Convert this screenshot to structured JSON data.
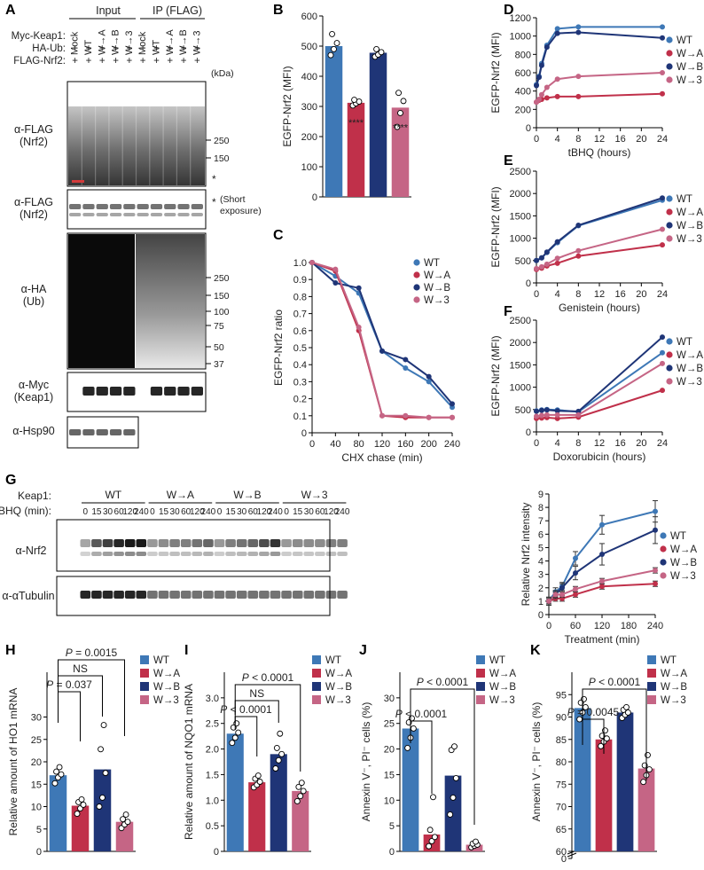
{
  "figure_title": "",
  "colors": {
    "WT": "#3e78b6",
    "W→A": "#c0304a",
    "W→B": "#1f3577",
    "W→3": "#c56585"
  },
  "panel_labels": [
    "A",
    "B",
    "C",
    "D",
    "E",
    "F",
    "G",
    "H",
    "I",
    "J",
    "K"
  ],
  "panel_A": {
    "group_labels": [
      "Input",
      "IP (FLAG)"
    ],
    "row_labels": [
      "Myc-Keap1:",
      "HA-Ub:",
      "FLAG-Nrf2:"
    ],
    "lane_labels": [
      "Mock",
      "WT",
      "W→A",
      "W→B",
      "W→3",
      "Mock",
      "WT",
      "W→A",
      "W→B",
      "W→3"
    ],
    "plus_row": [
      "+",
      "+",
      "+",
      "+",
      "+",
      "+",
      "+",
      "+",
      "+",
      "+"
    ],
    "unit": "(kDa)",
    "blots": [
      {
        "label": "α-FLAG",
        "sublabel": "(Nrf2)",
        "markers": [
          "250",
          "150"
        ]
      },
      {
        "label": "α-FLAG",
        "sublabel": "(Nrf2)",
        "note": "(Short exposure)",
        "markers": []
      },
      {
        "label": "α-HA",
        "sublabel": "(Ub)",
        "markers": [
          "250",
          "150",
          "100",
          "75",
          "50",
          "37"
        ]
      },
      {
        "label": "α-Myc",
        "sublabel": "(Keap1)",
        "markers": []
      },
      {
        "label": "α-Hsp90",
        "sublabel": "",
        "markers": []
      }
    ],
    "asterisk": "*"
  },
  "panel_G": {
    "row_label": "Keap1:",
    "time_label": "tBHQ (min):",
    "groups": [
      "WT",
      "W→A",
      "W→B",
      "W→3"
    ],
    "times": [
      "0",
      "15",
      "30",
      "60",
      "120",
      "240"
    ],
    "blots": [
      "α-Nrf2",
      "α-αTubulin"
    ]
  },
  "chart_data": [
    {
      "id": "B",
      "type": "bar",
      "categories": [
        "WT",
        "W→A",
        "W→B",
        "W→3"
      ],
      "values": [
        500,
        312,
        478,
        296
      ],
      "points": [
        [
          470,
          490,
          510,
          540
        ],
        [
          303,
          310,
          316,
          322
        ],
        [
          465,
          472,
          480,
          490
        ],
        [
          232,
          278,
          318,
          345
        ]
      ],
      "annotations": [
        "",
        "****",
        "",
        "****"
      ],
      "ylabel": "EGFP-Nrf2 (MFI)",
      "ylim": [
        0,
        600
      ],
      "yticks": [
        "0",
        "100",
        "200",
        "300",
        "400",
        "500",
        "600"
      ]
    },
    {
      "id": "C",
      "type": "line",
      "x": [
        0,
        40,
        80,
        120,
        160,
        200,
        240
      ],
      "series": [
        {
          "name": "WT",
          "values": [
            1.0,
            0.92,
            0.82,
            0.48,
            0.38,
            0.3,
            0.15
          ]
        },
        {
          "name": "W→A",
          "values": [
            1.0,
            0.95,
            0.6,
            0.1,
            0.09,
            0.09,
            0.09
          ]
        },
        {
          "name": "W→B",
          "values": [
            1.0,
            0.88,
            0.85,
            0.48,
            0.43,
            0.33,
            0.17
          ]
        },
        {
          "name": "W→3",
          "values": [
            1.0,
            0.96,
            0.62,
            0.1,
            0.1,
            0.09,
            0.09
          ]
        }
      ],
      "xlabel": "CHX chase (min)",
      "ylabel": "EGFP-Nrf2 ratio",
      "xlim": [
        0,
        240
      ],
      "ylim": [
        0,
        1
      ],
      "xticks": [
        "0",
        "40",
        "80",
        "120",
        "160",
        "200",
        "240"
      ],
      "yticks": [
        "0",
        "0.1",
        "0.2",
        "0.3",
        "0.4",
        "0.5",
        "0.6",
        "0.7",
        "0.8",
        "0.9",
        "1.0"
      ],
      "legend": [
        "WT",
        "W→A",
        "W→B",
        "W→3"
      ]
    },
    {
      "id": "D",
      "type": "line",
      "x": [
        0,
        0.5,
        1,
        2,
        4,
        8,
        24
      ],
      "series": [
        {
          "name": "WT",
          "values": [
            470,
            560,
            700,
            900,
            1080,
            1100,
            1100
          ]
        },
        {
          "name": "W→A",
          "values": [
            280,
            300,
            310,
            325,
            340,
            340,
            370
          ]
        },
        {
          "name": "W→B",
          "values": [
            460,
            550,
            680,
            880,
            1030,
            1040,
            980
          ]
        },
        {
          "name": "W→3",
          "values": [
            280,
            310,
            360,
            440,
            530,
            560,
            600
          ]
        }
      ],
      "xlabel": "tBHQ (hours)",
      "ylabel": "EGFP-Nrf2 (MFI)",
      "xlim": [
        0,
        24
      ],
      "ylim": [
        0,
        1200
      ],
      "xticks": [
        "0",
        "4",
        "8",
        "12",
        "16",
        "20",
        "24"
      ],
      "yticks": [
        "0",
        "200",
        "400",
        "600",
        "800",
        "1000",
        "1200"
      ],
      "legend": [
        "WT",
        "W→A",
        "W→B",
        "W→3"
      ]
    },
    {
      "id": "E",
      "type": "line",
      "x": [
        0,
        1,
        2,
        4,
        8,
        24
      ],
      "series": [
        {
          "name": "WT",
          "values": [
            500,
            560,
            680,
            900,
            1280,
            1850
          ]
        },
        {
          "name": "W→A",
          "values": [
            300,
            330,
            380,
            440,
            600,
            850
          ]
        },
        {
          "name": "W→B",
          "values": [
            500,
            560,
            690,
            920,
            1290,
            1900
          ]
        },
        {
          "name": "W→3",
          "values": [
            320,
            360,
            420,
            550,
            720,
            1200
          ]
        }
      ],
      "xlabel": "Genistein (hours)",
      "ylabel": "EGFP-Nrf2 (MFI)",
      "xlim": [
        0,
        24
      ],
      "ylim": [
        0,
        2500
      ],
      "xticks": [
        "0",
        "4",
        "8",
        "12",
        "16",
        "20",
        "24"
      ],
      "yticks": [
        "0",
        "500",
        "1000",
        "1500",
        "2000",
        "2500"
      ],
      "legend": [
        "WT",
        "W→A",
        "W→B",
        "W→3"
      ]
    },
    {
      "id": "F",
      "type": "line",
      "x": [
        0,
        1,
        2,
        4,
        8,
        24
      ],
      "series": [
        {
          "name": "WT",
          "values": [
            470,
            490,
            500,
            490,
            450,
            1770
          ]
        },
        {
          "name": "W→A",
          "values": [
            300,
            310,
            320,
            300,
            330,
            930
          ]
        },
        {
          "name": "W→B",
          "values": [
            460,
            480,
            490,
            470,
            460,
            2120
          ]
        },
        {
          "name": "W→3",
          "values": [
            350,
            370,
            380,
            380,
            380,
            1530
          ]
        }
      ],
      "xlabel": "Doxorubicin (hours)",
      "ylabel": "EGFP-Nrf2 (MFI)",
      "xlim": [
        0,
        24
      ],
      "ylim": [
        0,
        2500
      ],
      "xticks": [
        "0",
        "4",
        "8",
        "12",
        "16",
        "20",
        "24"
      ],
      "yticks": [
        "0",
        "500",
        "1000",
        "1500",
        "2000",
        "2500"
      ],
      "legend": [
        "WT",
        "W→A",
        "W→B",
        "W→3"
      ]
    },
    {
      "id": "G",
      "type": "line",
      "x": [
        0,
        15,
        30,
        60,
        120,
        240
      ],
      "series": [
        {
          "name": "WT",
          "values": [
            1.0,
            1.7,
            2.1,
            4.2,
            6.7,
            7.7
          ],
          "errors": [
            0.3,
            0.3,
            0.3,
            0.5,
            0.7,
            0.8
          ]
        },
        {
          "name": "W→A",
          "values": [
            1.0,
            1.2,
            1.2,
            1.5,
            2.1,
            2.3
          ],
          "errors": [
            0.2,
            0.2,
            0.2,
            0.2,
            0.2,
            0.2
          ]
        },
        {
          "name": "W→B",
          "values": [
            1.0,
            1.5,
            2.0,
            3.1,
            4.5,
            6.3
          ],
          "errors": [
            0.3,
            0.3,
            0.3,
            0.5,
            0.8,
            1.0
          ]
        },
        {
          "name": "W→3",
          "values": [
            1.0,
            1.5,
            1.5,
            1.9,
            2.5,
            3.3
          ],
          "errors": [
            0.2,
            0.2,
            0.2,
            0.2,
            0.2,
            0.2
          ]
        }
      ],
      "xlabel": "Treatment (min)",
      "ylabel": "Relative Nrf2 intensity",
      "xlim": [
        0,
        240
      ],
      "ylim": [
        0,
        9
      ],
      "xticks": [
        "0",
        "60",
        "120",
        "180",
        "240"
      ],
      "yticks": [
        "0",
        "1",
        "2",
        "3",
        "4",
        "5",
        "6",
        "7",
        "8",
        "9"
      ],
      "legend": [
        "WT",
        "W→A",
        "W→B",
        "W→3"
      ]
    },
    {
      "id": "H",
      "type": "bar",
      "categories": [
        "WT",
        "W→A",
        "W→B",
        "W→3"
      ],
      "values": [
        17,
        10.2,
        18.3,
        6.6
      ],
      "points": [
        [
          15.2,
          16.5,
          17.2,
          17.8,
          18.8
        ],
        [
          8.4,
          9.6,
          10.4,
          11.0,
          11.6
        ],
        [
          10.0,
          12.0,
          17.5,
          22.8,
          28.2
        ],
        [
          5.2,
          6.0,
          6.6,
          7.2,
          8.2
        ]
      ],
      "ylabel": "Relative amount of  HO1 mRNA",
      "ylim": [
        0,
        40
      ],
      "yticks": [
        "0",
        "5",
        "10",
        "15",
        "20",
        "25",
        "30"
      ],
      "comparisons": [
        {
          "from": 0,
          "to": 1,
          "label": "P = 0.037"
        },
        {
          "from": 0,
          "to": 2,
          "label": "NS"
        },
        {
          "from": 0,
          "to": 3,
          "label": "P = 0.0015"
        }
      ],
      "legend": [
        "WT",
        "W→A",
        "W→B",
        "W→3"
      ]
    },
    {
      "id": "I",
      "type": "bar",
      "categories": [
        "WT",
        "W→A",
        "W→B",
        "W→3"
      ],
      "values": [
        2.3,
        1.35,
        1.9,
        1.18
      ],
      "points": [
        [
          2.12,
          2.22,
          2.32,
          2.42,
          2.5
        ],
        [
          1.25,
          1.3,
          1.36,
          1.42,
          1.48
        ],
        [
          1.62,
          1.78,
          1.9,
          2.02,
          2.3
        ],
        [
          0.98,
          1.08,
          1.18,
          1.26,
          1.34
        ]
      ],
      "ylabel": "Relative amount of  NQO1 mRNA",
      "ylim": [
        0,
        3.5
      ],
      "yticks": [
        "0",
        "0.5",
        "1.0",
        "1.5",
        "2.0",
        "2.5",
        "3.0"
      ],
      "comparisons": [
        {
          "from": 0,
          "to": 1,
          "label": "P < 0.0001"
        },
        {
          "from": 0,
          "to": 2,
          "label": "NS"
        },
        {
          "from": 0,
          "to": 3,
          "label": "P < 0.0001"
        }
      ],
      "legend": [
        "WT",
        "W→A",
        "W→B",
        "W→3"
      ]
    },
    {
      "id": "J",
      "type": "bar",
      "categories": [
        "WT",
        "W→A",
        "W→B",
        "W→3"
      ],
      "values": [
        24,
        3.3,
        14.8,
        1.3
      ],
      "points": [
        [
          20.2,
          22.2,
          24.0,
          25.2,
          26.0
        ],
        [
          1.0,
          2.0,
          2.8,
          4.2,
          10.6
        ],
        [
          7.2,
          10.5,
          14.3,
          19.8,
          20.5
        ],
        [
          0.8,
          1.1,
          1.3,
          1.5,
          1.9
        ]
      ],
      "ylabel": "Annexin V⁻, PI⁻ cells (%)",
      "ylim": [
        0,
        35
      ],
      "yticks": [
        "0",
        "5",
        "10",
        "15",
        "20",
        "25",
        "30"
      ],
      "comparisons": [
        {
          "from": 0,
          "to": 1,
          "label": "P < 0.0001"
        },
        {
          "from": 0,
          "to": 3,
          "label": "P < 0.0001"
        }
      ],
      "legend": [
        "WT",
        "W→A",
        "W→B",
        "W→3"
      ]
    },
    {
      "id": "K",
      "type": "bar",
      "categories": [
        "WT",
        "W→A",
        "W→B",
        "W→3"
      ],
      "values": [
        92,
        85,
        91,
        78.5
      ],
      "points": [
        [
          89.5,
          91.0,
          92.2,
          93.2,
          94.0
        ],
        [
          83.5,
          84.5,
          85.2,
          85.8,
          87.0
        ],
        [
          89.8,
          90.5,
          91.0,
          91.6,
          92.2
        ],
        [
          75.5,
          77.0,
          78.3,
          79.2,
          81.5
        ]
      ],
      "ylabel": "Annexin V⁻, PI⁻ cells (%)",
      "ylim": [
        60,
        100
      ],
      "yticks": [
        "0",
        "60",
        "65",
        "70",
        "75",
        "80",
        "85",
        "90",
        "95"
      ],
      "axis_break": true,
      "comparisons": [
        {
          "from": 0,
          "to": 1,
          "label": "P = 0.0045"
        },
        {
          "from": 0,
          "to": 3,
          "label": "P < 0.0001"
        }
      ],
      "legend": [
        "WT",
        "W→A",
        "W→B",
        "W→3"
      ]
    }
  ]
}
